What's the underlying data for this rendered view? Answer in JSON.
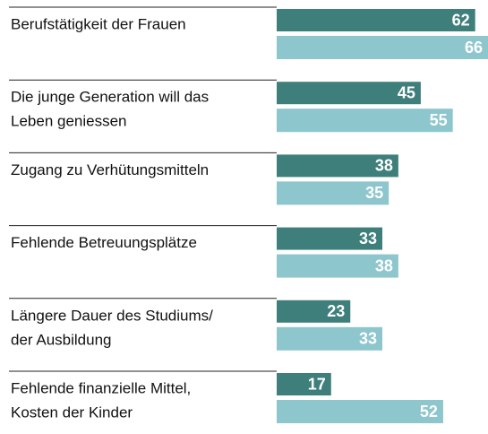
{
  "chart_data": {
    "type": "bar",
    "categories": [
      [
        "Berufstätigkeit der Frauen"
      ],
      [
        "Die junge Generation will das",
        "Leben geniessen"
      ],
      [
        "Zugang zu Verhütungsmitteln"
      ],
      [
        "Fehlende Betreuungsplätze"
      ],
      [
        "Längere Dauer des Studiums/",
        "der Ausbildung"
      ],
      [
        "Fehlende finanzielle Mittel,",
        "Kosten der Kinder"
      ]
    ],
    "series": [
      {
        "color": "#3f7f7b",
        "values": [
          62,
          45,
          38,
          33,
          23,
          17
        ]
      },
      {
        "color": "#8ec6ce",
        "values": [
          66,
          55,
          35,
          38,
          33,
          52
        ]
      }
    ],
    "xlim": [
      0,
      66
    ]
  }
}
